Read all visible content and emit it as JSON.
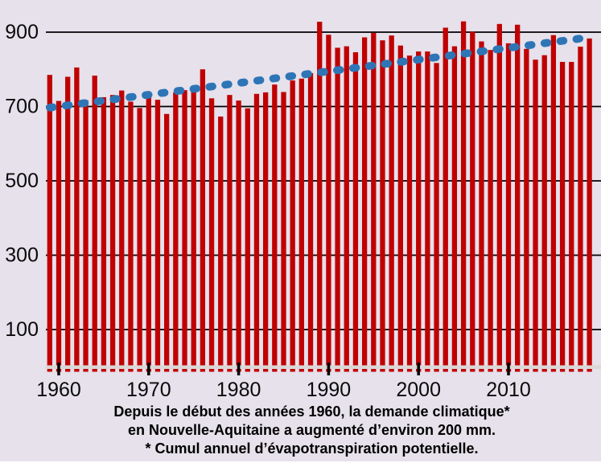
{
  "background_color": "#e6e1eb",
  "chart_data": {
    "type": "bar",
    "title": "",
    "unit": "mm",
    "years": [
      1959,
      1960,
      1961,
      1962,
      1963,
      1964,
      1965,
      1966,
      1967,
      1968,
      1969,
      1970,
      1971,
      1972,
      1973,
      1974,
      1975,
      1976,
      1977,
      1978,
      1979,
      1980,
      1981,
      1982,
      1983,
      1984,
      1985,
      1986,
      1987,
      1988,
      1989,
      1990,
      1991,
      1992,
      1993,
      1994,
      1995,
      1996,
      1997,
      1998,
      1999,
      2000,
      2001,
      2002,
      2003,
      2004,
      2005,
      2006,
      2007,
      2008,
      2009,
      2010,
      2011,
      2012,
      2013,
      2014,
      2015,
      2016,
      2017,
      2018,
      2019
    ],
    "values": [
      785,
      715,
      780,
      805,
      717,
      783,
      725,
      731,
      743,
      713,
      696,
      730,
      718,
      680,
      738,
      744,
      752,
      800,
      722,
      673,
      731,
      716,
      695,
      734,
      738,
      759,
      739,
      770,
      775,
      790,
      928,
      893,
      858,
      862,
      846,
      886,
      898,
      878,
      891,
      864,
      837,
      848,
      848,
      817,
      912,
      862,
      929,
      901,
      875,
      852,
      922,
      870,
      920,
      855,
      826,
      838,
      892,
      820,
      820,
      861,
      883
    ],
    "y_ticks": [
      100,
      300,
      500,
      700,
      900
    ],
    "x_ticks": [
      1960,
      1970,
      1980,
      1990,
      2000,
      2010
    ],
    "ylim": [
      0,
      960
    ],
    "grid": "horizontal-black-lines",
    "legend_position": "none",
    "bar_color": "#c00101",
    "grid_color": "#000000",
    "axis_band_color": "#dbd7d6",
    "trend": {
      "style": "dashed",
      "color": "#2e75b6",
      "start_year": 1959,
      "start_value": 697,
      "end_year": 2019,
      "end_value": 886
    }
  },
  "caption": {
    "lines": [
      "Depuis le début des années 1960, la demande climatique*",
      "en Nouvelle-Aquitaine a augmenté d’environ 200 mm.",
      "* Cumul annuel d’évapotranspiration potentielle."
    ]
  }
}
